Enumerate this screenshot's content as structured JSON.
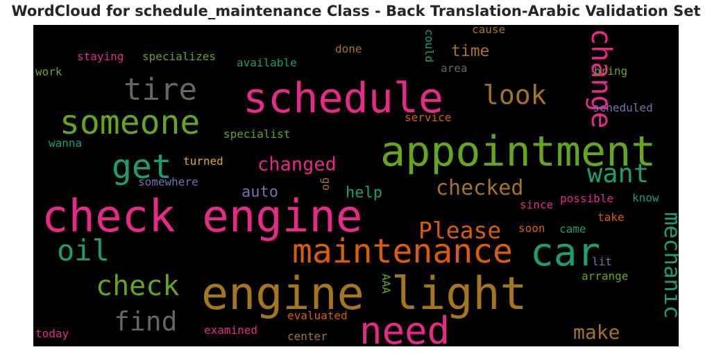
{
  "chart_data": {
    "type": "wordcloud",
    "title": "WordCloud for schedule_maintenance Class - Back Translation-Arabic Validation Set",
    "background": "#000000",
    "palette": [
      "#e7298a",
      "#66a61e",
      "#1b9e77",
      "#d95f02",
      "#a6761d",
      "#666666",
      "#7570b3",
      "#e6ab02"
    ],
    "words": [
      {
        "text": "check engine",
        "color": "#e7298a"
      },
      {
        "text": "schedule",
        "color": "#e7298a"
      },
      {
        "text": "appointment",
        "color": "#66a61e"
      },
      {
        "text": "engine light",
        "color": "#a6761d"
      },
      {
        "text": "maintenance",
        "color": "#d95f02"
      },
      {
        "text": "car",
        "color": "#1b9e77"
      },
      {
        "text": "need",
        "color": "#e7298a"
      },
      {
        "text": "someone",
        "color": "#66a61e"
      },
      {
        "text": "oil",
        "color": "#1b9e77"
      },
      {
        "text": "tire",
        "color": "#666666"
      },
      {
        "text": "get",
        "color": "#1b9e77"
      },
      {
        "text": "change",
        "color": "#e7298a"
      },
      {
        "text": "look",
        "color": "#a6761d"
      },
      {
        "text": "check",
        "color": "#66a61e"
      },
      {
        "text": "want",
        "color": "#1b9e77"
      },
      {
        "text": "mechanic",
        "color": "#1b9e77"
      },
      {
        "text": "find",
        "color": "#666666"
      },
      {
        "text": "Please",
        "color": "#d95f02"
      },
      {
        "text": "checked",
        "color": "#a6761d"
      },
      {
        "text": "changed",
        "color": "#e7298a"
      },
      {
        "text": "make",
        "color": "#a6761d"
      },
      {
        "text": "time",
        "color": "#a6761d"
      },
      {
        "text": "help",
        "color": "#1b9e77"
      },
      {
        "text": "auto",
        "color": "#7570b3"
      },
      {
        "text": "staying",
        "color": "#e7298a"
      },
      {
        "text": "specializes",
        "color": "#66a61e"
      },
      {
        "text": "available",
        "color": "#1b9e77"
      },
      {
        "text": "done",
        "color": "#a6761d"
      },
      {
        "text": "cause",
        "color": "#a6761d"
      },
      {
        "text": "could",
        "color": "#1b9e77"
      },
      {
        "text": "work",
        "color": "#66a61e"
      },
      {
        "text": "area",
        "color": "#666666"
      },
      {
        "text": "bring",
        "color": "#66a61e"
      },
      {
        "text": "scheduled",
        "color": "#7570b3"
      },
      {
        "text": "specialist",
        "color": "#66a61e"
      },
      {
        "text": "service",
        "color": "#d95f02"
      },
      {
        "text": "wanna",
        "color": "#1b9e77"
      },
      {
        "text": "turned",
        "color": "#e6ab02"
      },
      {
        "text": "somewhere",
        "color": "#7570b3"
      },
      {
        "text": "go",
        "color": "#a6761d"
      },
      {
        "text": "since",
        "color": "#e7298a"
      },
      {
        "text": "possible",
        "color": "#e7298a"
      },
      {
        "text": "know",
        "color": "#1b9e77"
      },
      {
        "text": "soon",
        "color": "#d95f02"
      },
      {
        "text": "came",
        "color": "#1b9e77"
      },
      {
        "text": "take",
        "color": "#d95f02"
      },
      {
        "text": "lit",
        "color": "#7570b3"
      },
      {
        "text": "AAA",
        "color": "#66a61e"
      },
      {
        "text": "arrange",
        "color": "#66a61e"
      },
      {
        "text": "evaluated",
        "color": "#d95f02"
      },
      {
        "text": "today",
        "color": "#e7298a"
      },
      {
        "text": "examined",
        "color": "#e7298a"
      },
      {
        "text": "center",
        "color": "#a6761d"
      }
    ]
  }
}
